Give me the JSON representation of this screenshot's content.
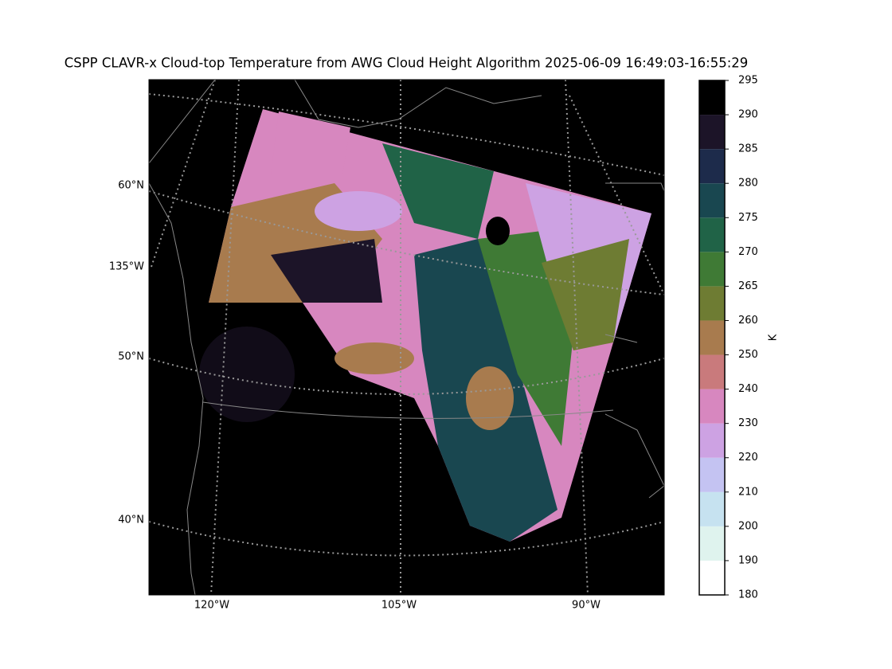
{
  "title": "CSPP CLAVR-x Cloud-top Temperature from AWG Cloud Height Algorithm 2025-06-09 16:49:03-16:55:29",
  "map": {
    "lat_labels": [
      "60°N",
      "50°N",
      "40°N"
    ],
    "lon_left_labels": [
      "135°W"
    ],
    "lon_bottom_labels": [
      "120°W",
      "105°W",
      "90°W"
    ]
  },
  "colorbar": {
    "label": "K",
    "ticks": [
      180,
      190,
      200,
      210,
      220,
      230,
      240,
      250,
      260,
      265,
      270,
      275,
      280,
      285,
      290,
      295
    ],
    "colors": [
      "#ffffff",
      "#dff3ee",
      "#c6e2f0",
      "#c4c3f2",
      "#cda2e3",
      "#d787bf",
      "#c97a7c",
      "#a87b4e",
      "#6e7c33",
      "#3f7a35",
      "#206347",
      "#194750",
      "#1d2b4b",
      "#1c1428",
      "#000000"
    ]
  }
}
